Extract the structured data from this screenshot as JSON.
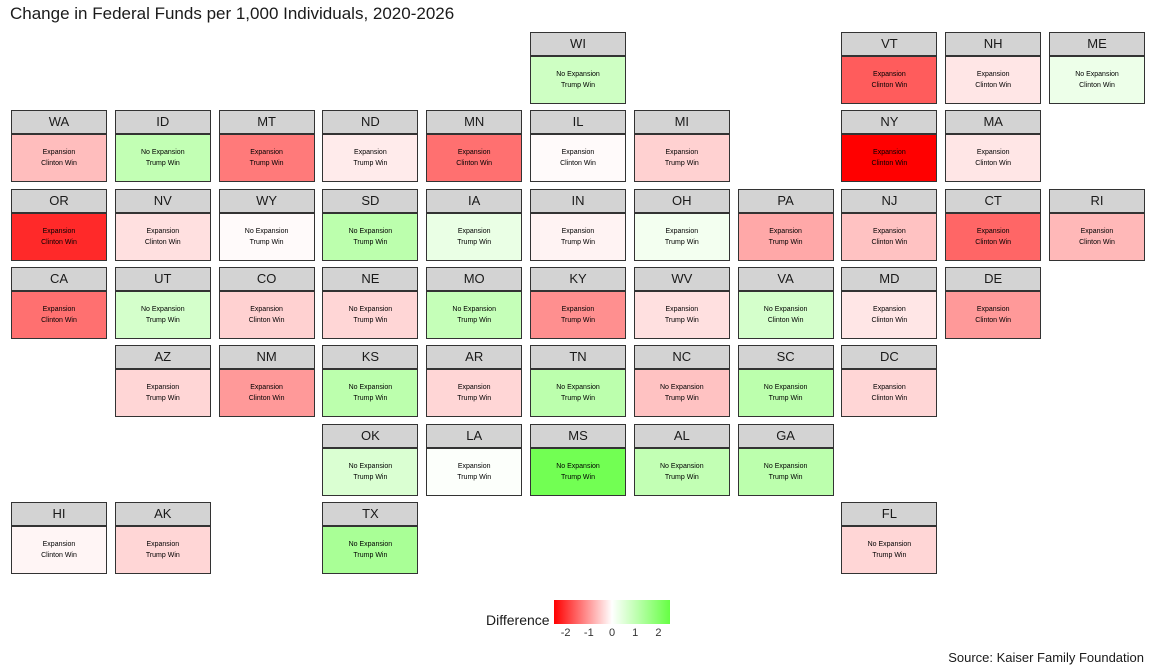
{
  "chart_data": {
    "type": "heatmap",
    "title": "Change in Federal Funds per 1,000 Individuals, 2020-2026",
    "legend": {
      "title": "Difference",
      "ticks": [
        -2,
        -1,
        0,
        1,
        2
      ],
      "range": [
        -2.5,
        2.5
      ],
      "low_color": "#ff0000",
      "mid_color": "#ffffff",
      "high_color": "#66ff44",
      "placement": "bottom"
    },
    "source": "Source: Kaiser Family Foundation",
    "states": [
      {
        "state": "WI",
        "col": 5,
        "row": 0,
        "value": 0.8,
        "line1": "No Expansion",
        "line2": "Trump Win"
      },
      {
        "state": "VT",
        "col": 8,
        "row": 0,
        "value": -1.6,
        "line1": "Expansion",
        "line2": "Clinton Win"
      },
      {
        "state": "NH",
        "col": 9,
        "row": 0,
        "value": -0.25,
        "line1": "Expansion",
        "line2": "Clinton Win"
      },
      {
        "state": "ME",
        "col": 10,
        "row": 0,
        "value": 0.3,
        "line1": "No Expansion",
        "line2": "Clinton Win"
      },
      {
        "state": "WA",
        "col": 0,
        "row": 1,
        "value": -0.65,
        "line1": "Expansion",
        "line2": "Clinton Win"
      },
      {
        "state": "ID",
        "col": 1,
        "row": 1,
        "value": 1.0,
        "line1": "No Expansion",
        "line2": "Trump Win"
      },
      {
        "state": "MT",
        "col": 2,
        "row": 1,
        "value": -1.3,
        "line1": "Expansion",
        "line2": "Trump Win"
      },
      {
        "state": "ND",
        "col": 3,
        "row": 1,
        "value": -0.2,
        "line1": "Expansion",
        "line2": "Trump Win"
      },
      {
        "state": "MN",
        "col": 4,
        "row": 1,
        "value": -1.4,
        "line1": "Expansion",
        "line2": "Clinton Win"
      },
      {
        "state": "IL",
        "col": 5,
        "row": 1,
        "value": -0.05,
        "line1": "Expansion",
        "line2": "Clinton Win"
      },
      {
        "state": "MI",
        "col": 6,
        "row": 1,
        "value": -0.45,
        "line1": "Expansion",
        "line2": "Trump Win"
      },
      {
        "state": "NY",
        "col": 8,
        "row": 1,
        "value": -2.5,
        "line1": "Expansion",
        "line2": "Clinton Win"
      },
      {
        "state": "MA",
        "col": 9,
        "row": 1,
        "value": -0.25,
        "line1": "Expansion",
        "line2": "Clinton Win"
      },
      {
        "state": "OR",
        "col": 0,
        "row": 2,
        "value": -2.1,
        "line1": "Expansion",
        "line2": "Clinton Win"
      },
      {
        "state": "NV",
        "col": 1,
        "row": 2,
        "value": -0.3,
        "line1": "Expansion",
        "line2": "Clinton Win"
      },
      {
        "state": "WY",
        "col": 2,
        "row": 2,
        "value": -0.05,
        "line1": "No Expansion",
        "line2": "Trump Win"
      },
      {
        "state": "SD",
        "col": 3,
        "row": 2,
        "value": 1.1,
        "line1": "No Expansion",
        "line2": "Trump Win"
      },
      {
        "state": "IA",
        "col": 4,
        "row": 2,
        "value": 0.35,
        "line1": "Expansion",
        "line2": "Trump Win"
      },
      {
        "state": "IN",
        "col": 5,
        "row": 2,
        "value": -0.12,
        "line1": "Expansion",
        "line2": "Trump Win"
      },
      {
        "state": "OH",
        "col": 6,
        "row": 2,
        "value": 0.2,
        "line1": "Expansion",
        "line2": "Trump Win"
      },
      {
        "state": "PA",
        "col": 7,
        "row": 2,
        "value": -0.85,
        "line1": "Expansion",
        "line2": "Trump Win"
      },
      {
        "state": "NJ",
        "col": 8,
        "row": 2,
        "value": -0.6,
        "line1": "Expansion",
        "line2": "Clinton Win"
      },
      {
        "state": "CT",
        "col": 9,
        "row": 2,
        "value": -1.5,
        "line1": "Expansion",
        "line2": "Clinton Win"
      },
      {
        "state": "RI",
        "col": 10,
        "row": 2,
        "value": -0.7,
        "line1": "Expansion",
        "line2": "Clinton Win"
      },
      {
        "state": "CA",
        "col": 0,
        "row": 3,
        "value": -1.4,
        "line1": "Expansion",
        "line2": "Clinton Win"
      },
      {
        "state": "UT",
        "col": 1,
        "row": 3,
        "value": 0.7,
        "line1": "No Expansion",
        "line2": "Trump Win"
      },
      {
        "state": "CO",
        "col": 2,
        "row": 3,
        "value": -0.45,
        "line1": "Expansion",
        "line2": "Clinton Win"
      },
      {
        "state": "NE",
        "col": 3,
        "row": 3,
        "value": -0.4,
        "line1": "No Expansion",
        "line2": "Trump Win"
      },
      {
        "state": "MO",
        "col": 4,
        "row": 3,
        "value": 0.95,
        "line1": "No Expansion",
        "line2": "Trump Win"
      },
      {
        "state": "KY",
        "col": 5,
        "row": 3,
        "value": -1.1,
        "line1": "Expansion",
        "line2": "Trump Win"
      },
      {
        "state": "WV",
        "col": 6,
        "row": 3,
        "value": -0.3,
        "line1": "Expansion",
        "line2": "Trump Win"
      },
      {
        "state": "VA",
        "col": 7,
        "row": 3,
        "value": 0.7,
        "line1": "No Expansion",
        "line2": "Clinton Win"
      },
      {
        "state": "MD",
        "col": 8,
        "row": 3,
        "value": -0.25,
        "line1": "Expansion",
        "line2": "Clinton Win"
      },
      {
        "state": "DE",
        "col": 9,
        "row": 3,
        "value": -1.0,
        "line1": "Expansion",
        "line2": "Clinton Win"
      },
      {
        "state": "AZ",
        "col": 1,
        "row": 4,
        "value": -0.4,
        "line1": "Expansion",
        "line2": "Trump Win"
      },
      {
        "state": "NM",
        "col": 2,
        "row": 4,
        "value": -1.0,
        "line1": "Expansion",
        "line2": "Clinton Win"
      },
      {
        "state": "KS",
        "col": 3,
        "row": 4,
        "value": 1.1,
        "line1": "No Expansion",
        "line2": "Trump Win"
      },
      {
        "state": "AR",
        "col": 4,
        "row": 4,
        "value": -0.4,
        "line1": "Expansion",
        "line2": "Trump Win"
      },
      {
        "state": "TN",
        "col": 5,
        "row": 4,
        "value": 1.1,
        "line1": "No Expansion",
        "line2": "Trump Win"
      },
      {
        "state": "NC",
        "col": 6,
        "row": 4,
        "value": -0.6,
        "line1": "No Expansion",
        "line2": "Trump Win"
      },
      {
        "state": "SC",
        "col": 7,
        "row": 4,
        "value": 1.1,
        "line1": "No Expansion",
        "line2": "Trump Win"
      },
      {
        "state": "DC",
        "col": 8,
        "row": 4,
        "value": -0.4,
        "line1": "Expansion",
        "line2": "Clinton Win"
      },
      {
        "state": "OK",
        "col": 3,
        "row": 5,
        "value": 0.6,
        "line1": "No Expansion",
        "line2": "Trump Win"
      },
      {
        "state": "LA",
        "col": 4,
        "row": 5,
        "value": 0.05,
        "line1": "Expansion",
        "line2": "Trump Win"
      },
      {
        "state": "MS",
        "col": 5,
        "row": 5,
        "value": 2.3,
        "line1": "No Expansion",
        "line2": "Trump Win"
      },
      {
        "state": "AL",
        "col": 6,
        "row": 5,
        "value": 1.0,
        "line1": "No Expansion",
        "line2": "Trump Win"
      },
      {
        "state": "GA",
        "col": 7,
        "row": 5,
        "value": 1.1,
        "line1": "No Expansion",
        "line2": "Trump Win"
      },
      {
        "state": "HI",
        "col": 0,
        "row": 6,
        "value": -0.1,
        "line1": "Expansion",
        "line2": "Clinton Win"
      },
      {
        "state": "AK",
        "col": 1,
        "row": 6,
        "value": -0.4,
        "line1": "Expansion",
        "line2": "Trump Win"
      },
      {
        "state": "TX",
        "col": 3,
        "row": 6,
        "value": 1.4,
        "line1": "No Expansion",
        "line2": "Trump Win"
      },
      {
        "state": "FL",
        "col": 8,
        "row": 6,
        "value": -0.4,
        "line1": "No Expansion",
        "line2": "Trump Win"
      }
    ]
  }
}
